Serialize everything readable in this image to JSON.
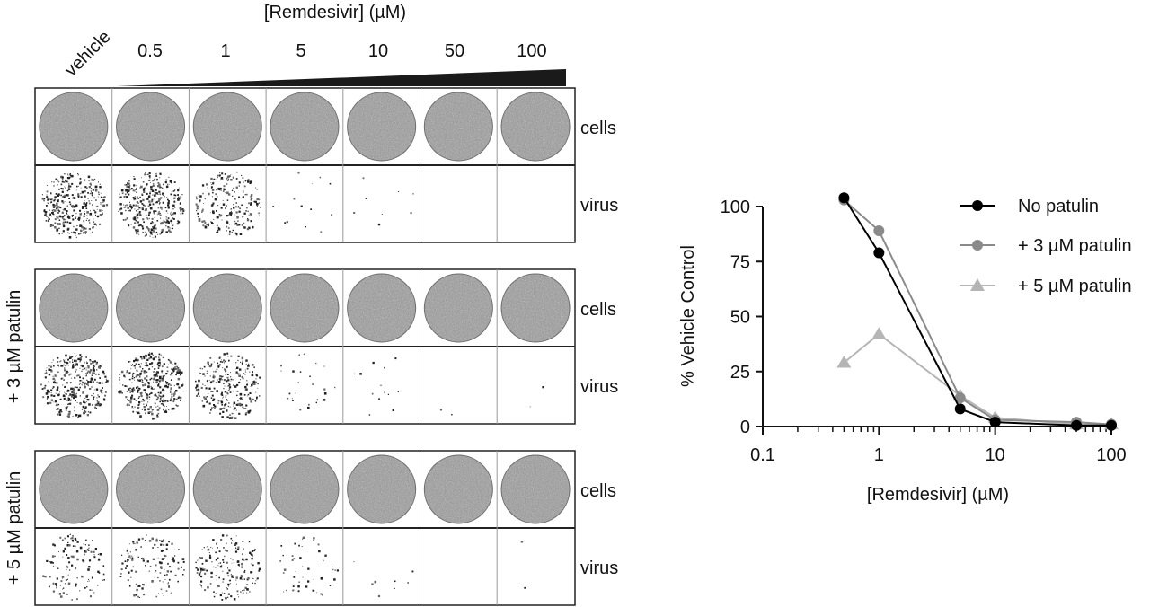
{
  "plate": {
    "concentration_label": "[Remdesivir] (µM)",
    "vehicle_label": "vehicle",
    "concentrations": [
      "0.5",
      "1",
      "5",
      "10",
      "50",
      "100"
    ],
    "row_labels": [
      "cells",
      "virus"
    ],
    "groups": [
      {
        "label": "",
        "virus_density": [
          0.85,
          0.9,
          0.55,
          0.03,
          0.02,
          0.0,
          0.0
        ]
      },
      {
        "label": "+ 3 µM patulin",
        "virus_density": [
          0.85,
          0.95,
          0.7,
          0.06,
          0.03,
          0.005,
          0.005
        ]
      },
      {
        "label": "+ 5 µM patulin",
        "virus_density": [
          0.3,
          0.35,
          0.45,
          0.12,
          0.02,
          0.0,
          0.005
        ]
      }
    ]
  },
  "chart_data": {
    "type": "line",
    "xlabel": "[Remdesivir] (µM)",
    "ylabel": "% Vehicle Control",
    "xscale": "log",
    "xlim": [
      0.1,
      100
    ],
    "ylim": [
      0,
      100
    ],
    "xticks": [
      0.1,
      1,
      10,
      100
    ],
    "xtick_labels": [
      "0.1",
      "1",
      "10",
      "100"
    ],
    "yticks": [
      0,
      25,
      50,
      75,
      100
    ],
    "ytick_labels": [
      "0",
      "25",
      "50",
      "75",
      "100"
    ],
    "legend_position": "top-right",
    "grid": false,
    "x": [
      0.5,
      1,
      5,
      10,
      50,
      100
    ],
    "series": [
      {
        "name": "No patulin",
        "values": [
          104,
          79,
          8,
          2,
          0.5,
          0.5
        ],
        "color": "#000000",
        "marker": "circle"
      },
      {
        "name": "+ 3 µM patulin",
        "values": [
          103,
          89,
          13,
          3,
          2,
          1
        ],
        "color": "#8a8a8a",
        "marker": "circle"
      },
      {
        "name": "+ 5 µM patulin",
        "values": [
          29,
          42,
          14,
          4,
          1,
          1
        ],
        "color": "#b5b5b5",
        "marker": "triangle"
      }
    ]
  }
}
